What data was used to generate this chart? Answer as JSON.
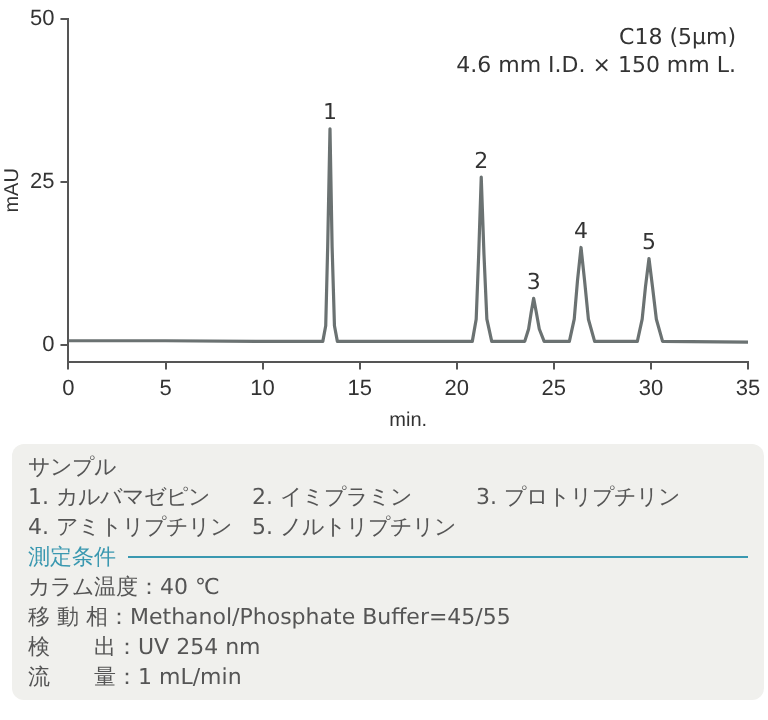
{
  "chart_data": {
    "type": "line",
    "xlabel": "min.",
    "ylabel": "mAU",
    "xlim": [
      0,
      35
    ],
    "xticks": [
      0,
      5,
      10,
      15,
      20,
      25,
      30,
      35
    ],
    "ylim": [
      -2.5,
      50
    ],
    "yticks": [
      0,
      25,
      50
    ],
    "grid": false,
    "legend": false,
    "marker": "none",
    "line_style": "solid",
    "series": [
      {
        "color": "#6b7272",
        "x": [
          0,
          5,
          10,
          13.1,
          13.25,
          13.35,
          13.47,
          13.58,
          13.7,
          13.85,
          17,
          20.8,
          21.0,
          21.13,
          21.26,
          21.4,
          21.55,
          21.8,
          23.5,
          23.7,
          23.83,
          23.96,
          24.1,
          24.25,
          24.5,
          25.8,
          26.05,
          26.22,
          26.4,
          26.58,
          26.78,
          27.1,
          29.3,
          29.55,
          29.72,
          29.9,
          30.08,
          30.28,
          30.6,
          35
        ],
        "values": [
          0.7,
          0.7,
          0.6,
          0.6,
          3,
          15,
          33.2,
          15,
          3,
          0.6,
          0.6,
          0.6,
          4,
          14,
          25.8,
          14,
          4,
          0.6,
          0.6,
          2.5,
          5,
          7.2,
          5,
          2.5,
          0.6,
          0.6,
          4,
          10,
          15,
          10,
          4,
          0.6,
          0.6,
          4,
          9,
          13.3,
          9,
          4,
          0.6,
          0.5
        ]
      }
    ],
    "annotations": [
      {
        "text": "1",
        "x": 13.47,
        "y": 33.2
      },
      {
        "text": "2",
        "x": 21.26,
        "y": 25.8
      },
      {
        "text": "3",
        "x": 23.96,
        "y": 7.2
      },
      {
        "text": "4",
        "x": 26.4,
        "y": 15
      },
      {
        "text": "5",
        "x": 29.9,
        "y": 13.3
      },
      "C18 (5μm)",
      "4.6 mm I.D. × 150 mm L.",
      "サンプル",
      "1. カルバマゼピン",
      "2. イミプラミン",
      "3. プロトリプチリン",
      "4. アミトリプチリン",
      "5. ノルトリプチリン",
      "測定条件",
      "カラム温度：40 ℃",
      "移 動 相：Methanol/Phosphate Buffer=45/55",
      "検　　出：UV 254 nm",
      "流　　量：1 mL/min"
    ]
  }
}
